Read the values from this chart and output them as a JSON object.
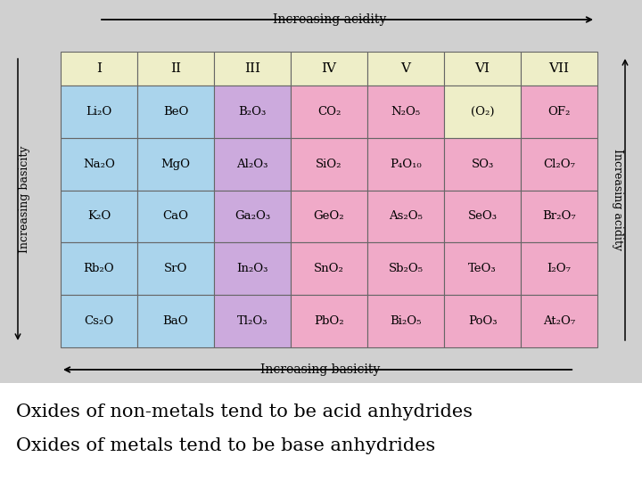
{
  "caption_line1": "Oxides of non-metals tend to be acid anhydrides",
  "caption_line2": "Oxides of metals tend to be base anhydrides",
  "col_headers": [
    "I",
    "II",
    "III",
    "IV",
    "V",
    "VI",
    "VII"
  ],
  "rows": [
    [
      "Li₂O",
      "BeO",
      "B₂O₃",
      "CO₂",
      "N₂O₅",
      "(O₂)",
      "OF₂"
    ],
    [
      "Na₂O",
      "MgO",
      "Al₂O₃",
      "SiO₂",
      "P₄O₁₀",
      "SO₃",
      "Cl₂O₇"
    ],
    [
      "K₂O",
      "CaO",
      "Ga₂O₃",
      "GeO₂",
      "As₂O₅",
      "SeO₃",
      "Br₂O₇"
    ],
    [
      "Rb₂O",
      "SrO",
      "In₂O₃",
      "SnO₂",
      "Sb₂O₅",
      "TeO₃",
      "I₂O₇"
    ],
    [
      "Cs₂O",
      "BaO",
      "Tl₂O₃",
      "PbO₂",
      "Bi₂O₅",
      "PoO₃",
      "At₂O₇"
    ]
  ],
  "color_header": "#eeeec8",
  "color_blue": "#aad4ec",
  "color_purple": "#ccaadd",
  "color_pink": "#f0aac8",
  "color_yellow": "#eeeec8",
  "bg_color": "#d0d0d0",
  "cell_colors": [
    [
      "blue",
      "blue",
      "purple",
      "pink",
      "pink",
      "yellow",
      "pink"
    ],
    [
      "blue",
      "blue",
      "purple",
      "pink",
      "pink",
      "pink",
      "pink"
    ],
    [
      "blue",
      "blue",
      "purple",
      "pink",
      "pink",
      "pink",
      "pink"
    ],
    [
      "blue",
      "blue",
      "purple",
      "pink",
      "pink",
      "pink",
      "pink"
    ],
    [
      "blue",
      "blue",
      "purple",
      "pink",
      "pink",
      "pink",
      "pink"
    ]
  ]
}
